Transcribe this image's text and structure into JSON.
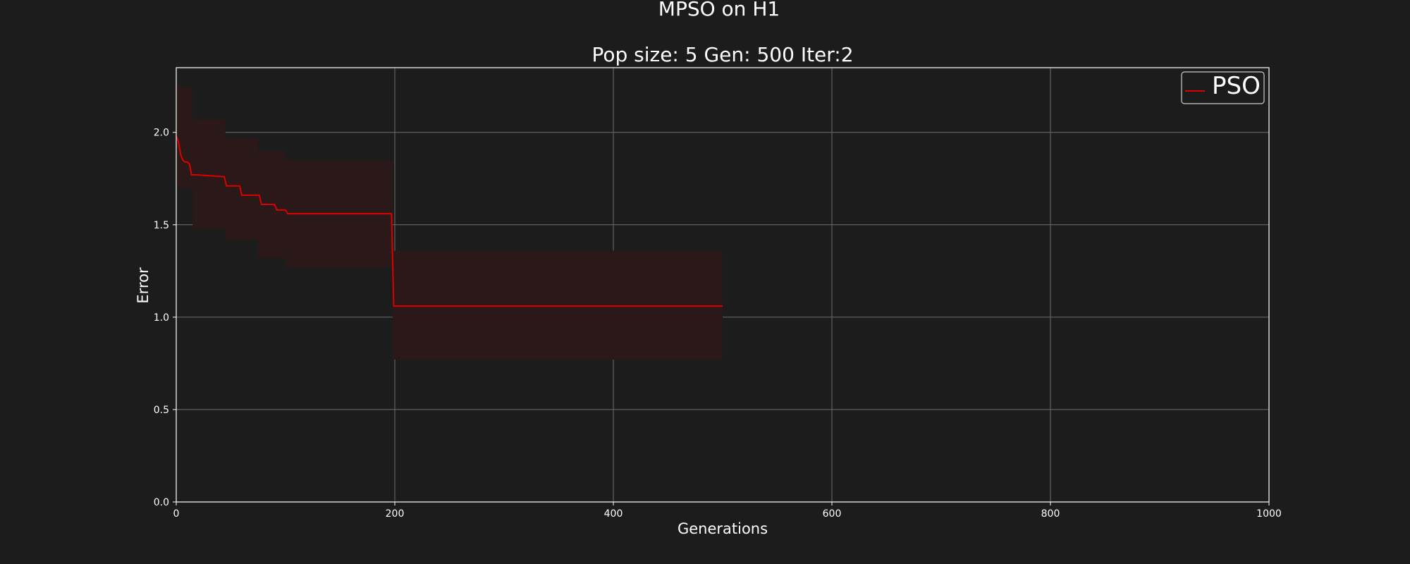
{
  "chart_data": {
    "type": "line",
    "title": "MPSO on H1",
    "subtitle": "Pop size: 5  Gen: 500  Iter:2",
    "xlabel": "Generations",
    "ylabel": "Error",
    "xlim": [
      0,
      1000
    ],
    "ylim": [
      0,
      2.35
    ],
    "x_ticks": [
      0,
      200,
      400,
      600,
      800,
      1000
    ],
    "y_ticks": [
      0.0,
      0.5,
      1.0,
      1.5,
      2.0
    ],
    "x_tick_labels": [
      "0",
      "200",
      "400",
      "600",
      "800",
      "1000"
    ],
    "y_tick_labels": [
      "0.0",
      "0.5",
      "1.0",
      "1.5",
      "2.0"
    ],
    "grid": true,
    "legend_position": "top-right",
    "colors": {
      "background": "#1c1c1c",
      "line": "#dd0000",
      "band": "#2b1818",
      "grid": "#6e6e6e",
      "text": "#ffffff"
    },
    "series": [
      {
        "name": "PSO",
        "color": "#dd0000",
        "x": [
          0,
          2,
          4,
          6,
          8,
          10,
          12,
          14,
          16,
          18,
          44,
          46,
          58,
          60,
          76,
          78,
          90,
          92,
          100,
          102,
          197,
          199,
          500
        ],
        "y": [
          1.98,
          1.95,
          1.88,
          1.85,
          1.84,
          1.84,
          1.83,
          1.77,
          1.77,
          1.77,
          1.76,
          1.71,
          1.71,
          1.66,
          1.66,
          1.61,
          1.61,
          1.58,
          1.58,
          1.56,
          1.56,
          1.06,
          1.06
        ],
        "band": {
          "x": [
            0,
            15,
            15,
            45,
            45,
            75,
            75,
            100,
            100,
            198,
            198,
            500
          ],
          "upper": [
            2.25,
            2.25,
            2.07,
            2.07,
            1.97,
            1.97,
            1.9,
            1.9,
            1.85,
            1.85,
            1.36,
            1.36
          ],
          "lower": [
            1.7,
            1.7,
            1.48,
            1.48,
            1.42,
            1.42,
            1.32,
            1.32,
            1.27,
            1.27,
            0.77,
            0.77
          ]
        }
      }
    ]
  }
}
